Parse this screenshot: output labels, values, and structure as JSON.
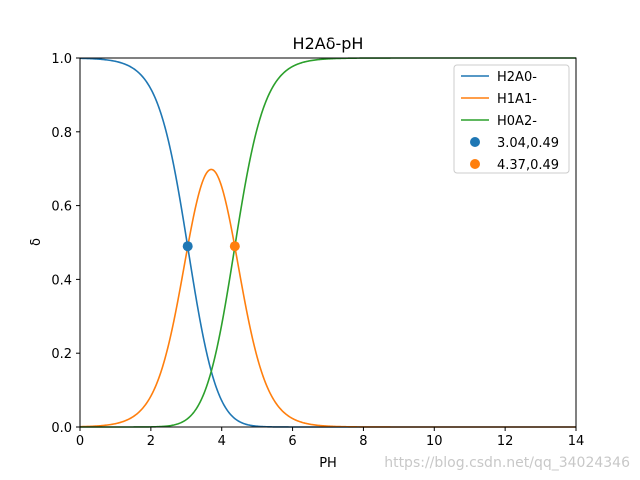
{
  "chart_data": {
    "type": "line",
    "title": "H2Aδ-pH",
    "xlabel": "PH",
    "ylabel": "δ",
    "xlim": [
      0,
      14
    ],
    "ylim": [
      0,
      1.0
    ],
    "xticks": [
      "0",
      "2",
      "4",
      "6",
      "8",
      "10",
      "12",
      "14"
    ],
    "yticks": [
      "0.0",
      "0.2",
      "0.4",
      "0.6",
      "0.8",
      "1.0"
    ],
    "grid": false,
    "legend_position": "top-right",
    "pKa": [
      3.04,
      4.37
    ],
    "series": [
      {
        "name": "H2A0-",
        "color": "#1f77b4",
        "kind": "line"
      },
      {
        "name": "H1A1-",
        "color": "#ff7f0e",
        "kind": "line"
      },
      {
        "name": "H0A2-",
        "color": "#2ca02c",
        "kind": "line"
      }
    ],
    "points": [
      {
        "name": "3.04,0.49",
        "x": 3.04,
        "y": 0.49,
        "color": "#1f77b4"
      },
      {
        "name": "4.37,0.49",
        "x": 4.37,
        "y": 0.49,
        "color": "#ff7f0e"
      }
    ]
  },
  "watermark": "https://blog.csdn.net/qq_34024346"
}
